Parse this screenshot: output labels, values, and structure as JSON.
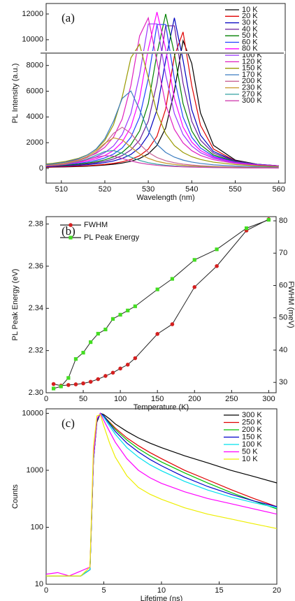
{
  "chart_data": [
    {
      "type": "line",
      "annotation": "(a)",
      "xlabel": "Wavelength (nm)",
      "ylabel": "PL Intensity (a.u.)",
      "xlim": [
        506.5,
        561.5
      ],
      "xticks": [
        510,
        520,
        530,
        540,
        550,
        560
      ],
      "ylim": [
        -1140,
        12815
      ],
      "yticks": [
        0,
        2000,
        4000,
        6000,
        8000,
        10000,
        12000
      ],
      "legend": "upper right",
      "x": [
        505,
        508,
        511,
        514,
        516,
        518,
        520,
        522,
        524,
        526,
        528,
        530,
        532,
        534,
        536,
        538,
        540,
        542,
        545,
        550,
        555,
        560
      ],
      "series": [
        {
          "name": "10 K",
          "color": "#000000",
          "values": [
            81,
            98,
            120,
            151,
            178,
            214,
            262,
            326,
            418,
            554,
            770,
            1129,
            1792,
            3138,
            6021,
            9925,
            8160,
            4320,
            1792,
            650,
            326,
            195
          ]
        },
        {
          "name": "20 K",
          "color": "#e00000",
          "values": [
            92,
            112,
            138,
            175,
            208,
            252,
            311,
            393,
            513,
            694,
            988,
            1503,
            2500,
            4616,
            8720,
            10606,
            6431,
            3357,
            1503,
            592,
            311,
            190
          ]
        },
        {
          "name": "30 K",
          "color": "#0000c0",
          "values": [
            123,
            151,
            189,
            242,
            292,
            359,
            450,
            582,
            777,
            1087,
            1615,
            2589,
            4563,
            8412,
            11700,
            8412,
            4563,
            2589,
            1313,
            582,
            322,
            204
          ]
        },
        {
          "name": "40 K",
          "color": "#6a1b9a",
          "values": [
            145,
            178,
            224,
            292,
            354,
            440,
            558,
            733,
            1000,
            1434,
            2200,
            3667,
            6626,
            11081,
            11081,
            6626,
            3667,
            2200,
            1188,
            558,
            321,
            207
          ]
        },
        {
          "name": "50 K",
          "color": "#008000",
          "values": [
            163,
            202,
            257,
            337,
            414,
            517,
            668,
            892,
            1245,
            1841,
            2916,
            5034,
            8916,
            12000,
            8916,
            5034,
            2916,
            1841,
            1046,
            517,
            306,
            202
          ]
        },
        {
          "name": "60 K",
          "color": "#2040ff",
          "values": [
            186,
            233,
            299,
            397,
            492,
            624,
            818,
            1112,
            1590,
            2420,
            3980,
            6974,
            11183,
            11183,
            6974,
            3980,
            2420,
            1590,
            948,
            492,
            299,
            200
          ]
        },
        {
          "name": "80 K",
          "color": "#ff00ff",
          "values": [
            212,
            267,
            347,
            468,
            587,
            754,
            1004,
            1393,
            2046,
            3216,
            5437,
            9282,
            12150,
            9282,
            5437,
            3216,
            2046,
            1393,
            865,
            468,
            291,
            198
          ]
        },
        {
          "name": "100 K",
          "color": "#9933ff",
          "values": [
            239,
            304,
            399,
            545,
            693,
            906,
            1224,
            1746,
            2631,
            4263,
            7271,
            11231,
            11231,
            7271,
            4263,
            2631,
            1746,
            1224,
            788,
            440,
            280,
            193
          ]
        },
        {
          "name": "120 K",
          "color": "#e020c0",
          "values": [
            280,
            361,
            482,
            676,
            875,
            1169,
            1642,
            2438,
            3839,
            6440,
            10294,
            11698,
            8304,
            4968,
            3036,
            1983,
            1381,
            1008,
            676,
            395,
            259,
            182
          ]
        },
        {
          "name": "150 K",
          "color": "#999900",
          "values": [
            301,
            395,
            544,
            791,
            1057,
            1476,
            2169,
            3391,
            5547,
            8594,
            9649,
            7046,
            4322,
            2692,
            1776,
            1242,
            910,
            695,
            487,
            301,
            203,
            146
          ]
        },
        {
          "name": "170 K",
          "color": "#3a7cc0",
          "values": [
            257,
            346,
            493,
            748,
            1037,
            1510,
            2312,
            3668,
            5437,
            6018,
            4559,
            2911,
            1860,
            1242,
            876,
            645,
            493,
            389,
            282,
            182,
            127,
            93
          ]
        },
        {
          "name": "200 K",
          "color": "#c86496",
          "values": [
            192,
            264,
            384,
            600,
            847,
            1248,
            1888,
            2725,
            3200,
            2725,
            1888,
            1248,
            847,
            600,
            442,
            337,
            264,
            212,
            159,
            106,
            75,
            56
          ]
        },
        {
          "name": "230 K",
          "color": "#c89628",
          "values": [
            194,
            273,
            408,
            654,
            936,
            1372,
            1951,
            2378,
            2215,
            1651,
            1132,
            782,
            551,
            408,
            310,
            243,
            194,
            159,
            122,
            83,
            60,
            45
          ]
        },
        {
          "name": "270 K",
          "color": "#30a0a0",
          "values": [
            154,
            218,
            327,
            526,
            737,
            1026,
            1312,
            1390,
            1180,
            874,
            620,
            445,
            327,
            248,
            193,
            154,
            125,
            104,
            81,
            56,
            41,
            31
          ]
        },
        {
          "name": "300 K",
          "color": "#d040b0",
          "values": [
            150,
            213,
            319,
            500,
            676,
            871,
            994,
            950,
            775,
            583,
            429,
            319,
            242,
            187,
            150,
            121,
            100,
            84,
            66,
            46,
            34,
            26
          ]
        }
      ]
    },
    {
      "type": "line",
      "annotation": "(b)",
      "xlabel": "Temperature (K)",
      "ylabel": "PL Peak Energy (eV)",
      "y2label": "FWHM (meV)",
      "xlim": [
        0,
        310
      ],
      "xticks": [
        0,
        50,
        100,
        150,
        200,
        250,
        300
      ],
      "ylim": [
        2.3,
        2.3835
      ],
      "yticks": [
        {
          "value": 2.3,
          "label": "2.30"
        },
        2.32,
        2.34,
        2.36,
        2.38
      ],
      "y2lim": [
        26.8,
        81.3
      ],
      "y2ticks": [
        30,
        40,
        50,
        60,
        70,
        80
      ],
      "legend": "upper left",
      "x": [
        10,
        20,
        30,
        40,
        50,
        60,
        70,
        80,
        90,
        100,
        110,
        120,
        150,
        170,
        200,
        230,
        270,
        300
      ],
      "series": [
        {
          "name": "FWHM",
          "color": "#d42020",
          "marker": "circle",
          "line_color": "#222222",
          "axis": "y2",
          "values": [
            29.5,
            29,
            29.2,
            29.4,
            29.7,
            30.2,
            31,
            32,
            33,
            34.3,
            35.5,
            37.5,
            45,
            48,
            59.5,
            66,
            77,
            80.5
          ]
        },
        {
          "name": "PL Peak Energy",
          "color": "#44dd22",
          "marker": "square",
          "line_color": "#222222",
          "values": [
            2.302,
            2.303,
            2.307,
            2.316,
            2.319,
            2.324,
            2.328,
            2.33,
            2.335,
            2.337,
            2.339,
            2.341,
            2.349,
            2.354,
            2.363,
            2.368,
            2.378,
            2.382
          ]
        }
      ]
    },
    {
      "type": "line",
      "annotation": "(c)",
      "xlabel": "Lifetime (ns)",
      "ylabel": "Counts",
      "y_scale": "log",
      "xlim": [
        0,
        20
      ],
      "xticks": [
        0,
        5,
        10,
        15,
        20
      ],
      "ylim": [
        10,
        12000
      ],
      "yticks": [
        10,
        100,
        1000,
        10000
      ],
      "legend": "upper right",
      "x": [
        0,
        1,
        2,
        3,
        3.8,
        4.1,
        4.4,
        4.7,
        5,
        5.5,
        6,
        7,
        8,
        9,
        10,
        12,
        14,
        16,
        18,
        20
      ],
      "series": [
        {
          "name": "300 K",
          "color": "#000000",
          "values": [
            14,
            14,
            14,
            14,
            18,
            1500,
            7000,
            10000,
            9500,
            8000,
            6500,
            4800,
            3700,
            3000,
            2500,
            1800,
            1350,
            1000,
            780,
            600
          ]
        },
        {
          "name": "250 K",
          "color": "#e00000",
          "values": [
            14,
            14,
            14,
            14,
            18,
            1500,
            7500,
            10000,
            9000,
            7000,
            5500,
            3700,
            2700,
            2050,
            1600,
            1000,
            680,
            460,
            320,
            230
          ]
        },
        {
          "name": "200 K",
          "color": "#00c000",
          "values": [
            14,
            14,
            14,
            14,
            18,
            1500,
            7500,
            10000,
            9000,
            6800,
            5200,
            3400,
            2400,
            1800,
            1400,
            900,
            600,
            410,
            290,
            210
          ]
        },
        {
          "name": "150 K",
          "color": "#0000cc",
          "values": [
            14,
            14,
            14,
            14,
            18,
            1500,
            7500,
            10000,
            9000,
            6500,
            4800,
            3000,
            2100,
            1550,
            1200,
            760,
            520,
            380,
            290,
            230
          ]
        },
        {
          "name": "100 K",
          "color": "#00e0ee",
          "values": [
            14,
            14,
            14,
            14,
            18,
            1600,
            8000,
            10000,
            8500,
            6000,
            4300,
            2500,
            1700,
            1250,
            980,
            640,
            450,
            340,
            270,
            220
          ]
        },
        {
          "name": "50 K",
          "color": "#ff00ff",
          "values": [
            15,
            16,
            14,
            17,
            20,
            1700,
            8000,
            10000,
            7500,
            4800,
            3100,
            1600,
            1000,
            740,
            590,
            420,
            320,
            260,
            210,
            170
          ]
        },
        {
          "name": "10 K",
          "color": "#eeee00",
          "values": [
            14,
            14,
            14,
            14,
            20,
            2500,
            9000,
            9500,
            6000,
            3000,
            1700,
            800,
            500,
            380,
            310,
            220,
            170,
            140,
            115,
            95
          ]
        }
      ]
    }
  ]
}
